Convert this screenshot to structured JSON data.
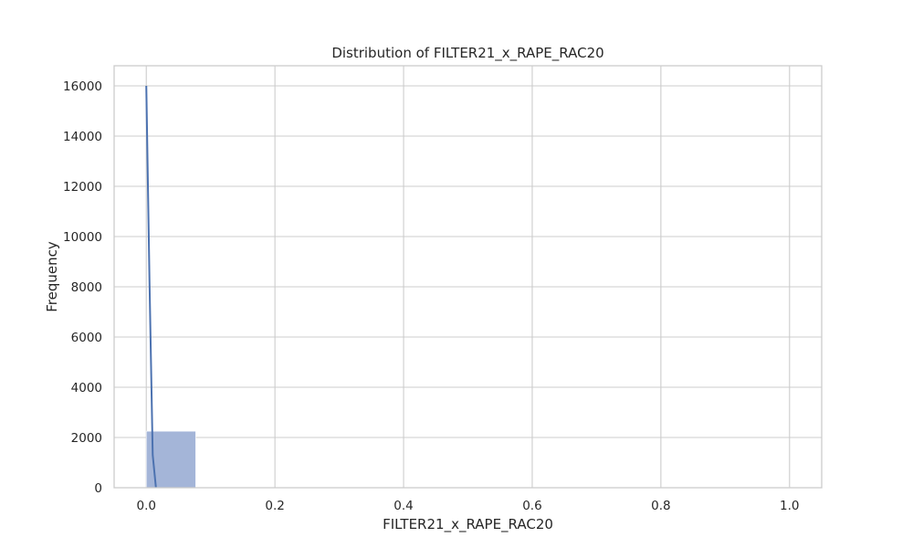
{
  "chart_data": {
    "type": "bar",
    "title": "Distribution of FILTER21_x_RAPE_RAC20",
    "xlabel": "FILTER21_x_RAPE_RAC20",
    "ylabel": "Frequency",
    "xlim": [
      -0.05,
      1.05
    ],
    "ylim": [
      0,
      16800
    ],
    "xticks": [
      0.0,
      0.2,
      0.4,
      0.6,
      0.8,
      1.0
    ],
    "xtick_labels": [
      "0.0",
      "0.2",
      "0.4",
      "0.6",
      "0.8",
      "1.0"
    ],
    "yticks": [
      0,
      2000,
      4000,
      6000,
      8000,
      10000,
      12000,
      14000,
      16000
    ],
    "ytick_labels": [
      "0",
      "2000",
      "4000",
      "6000",
      "8000",
      "10000",
      "12000",
      "14000",
      "16000"
    ],
    "grid": true,
    "bins": [
      {
        "x0": 0.0,
        "x1": 0.0769,
        "count": 2250
      },
      {
        "x0": 0.0769,
        "x1": 0.1538,
        "count": 0
      },
      {
        "x0": 0.1538,
        "x1": 0.2308,
        "count": 0
      },
      {
        "x0": 0.2308,
        "x1": 0.3077,
        "count": 0
      },
      {
        "x0": 0.3077,
        "x1": 0.3846,
        "count": 0
      },
      {
        "x0": 0.3846,
        "x1": 0.4615,
        "count": 0
      },
      {
        "x0": 0.4615,
        "x1": 0.5385,
        "count": 0
      },
      {
        "x0": 0.5385,
        "x1": 0.6154,
        "count": 0
      },
      {
        "x0": 0.6154,
        "x1": 0.6923,
        "count": 0
      },
      {
        "x0": 0.6923,
        "x1": 0.7692,
        "count": 0
      },
      {
        "x0": 0.7692,
        "x1": 0.8462,
        "count": 0
      },
      {
        "x0": 0.8462,
        "x1": 0.9231,
        "count": 0
      },
      {
        "x0": 0.9231,
        "x1": 1.0,
        "count": 15
      }
    ],
    "kde": {
      "x": [
        0.0,
        0.005,
        0.01,
        0.015
      ],
      "y": [
        16000,
        8200,
        1300,
        0
      ]
    },
    "colors": {
      "bar_fill": "#a4b5d8",
      "kde_line": "#4c72b0"
    }
  }
}
